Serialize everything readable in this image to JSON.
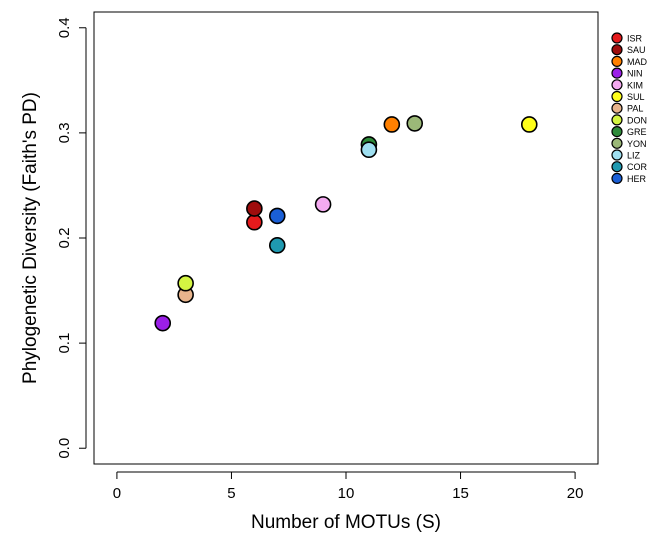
{
  "chart_data": {
    "type": "scatter",
    "title": "",
    "xlabel": "Number of MOTUs (S)",
    "ylabel": "Phylogenetic Diversity (Faith's PD)",
    "xlim": [
      -1,
      21
    ],
    "ylim": [
      -0.015,
      0.415
    ],
    "xticks": [
      "0",
      "5",
      "10",
      "15",
      "20"
    ],
    "xtick_values": [
      0,
      5,
      10,
      15,
      20
    ],
    "yticks": [
      "0.0",
      "0.1",
      "0.2",
      "0.3",
      "0.4"
    ],
    "ytick_values": [
      0.0,
      0.1,
      0.2,
      0.3,
      0.4
    ],
    "grid": false,
    "legend_position": "right",
    "series": [
      {
        "name": "ISR",
        "color": "#e41a1c",
        "points": [
          [
            6,
            0.215
          ]
        ]
      },
      {
        "name": "SAU",
        "color": "#9e0d0d",
        "points": [
          [
            6,
            0.228
          ]
        ]
      },
      {
        "name": "MAD",
        "color": "#ff8000",
        "points": [
          [
            12,
            0.308
          ]
        ]
      },
      {
        "name": "NIN",
        "color": "#9b1fe8",
        "points": [
          [
            2,
            0.119
          ]
        ]
      },
      {
        "name": "KIM",
        "color": "#f4aaf0",
        "points": [
          [
            9,
            0.232
          ]
        ]
      },
      {
        "name": "SUL",
        "color": "#ffff1a",
        "points": [
          [
            18,
            0.308
          ]
        ]
      },
      {
        "name": "PAL",
        "color": "#e8b48c",
        "points": [
          [
            3,
            0.146
          ]
        ]
      },
      {
        "name": "DON",
        "color": "#d4f542",
        "points": [
          [
            3,
            0.157
          ]
        ]
      },
      {
        "name": "GRE",
        "color": "#2e8b3a",
        "points": [
          [
            11,
            0.289
          ]
        ]
      },
      {
        "name": "YON",
        "color": "#9bb878",
        "points": [
          [
            13,
            0.309
          ]
        ]
      },
      {
        "name": "LIZ",
        "color": "#9fdff0",
        "points": [
          [
            11,
            0.284
          ]
        ]
      },
      {
        "name": "COR",
        "color": "#1f99b0",
        "points": [
          [
            7,
            0.193
          ]
        ]
      },
      {
        "name": "HER",
        "color": "#1a5fd6",
        "points": [
          [
            7,
            0.221
          ]
        ]
      }
    ]
  }
}
